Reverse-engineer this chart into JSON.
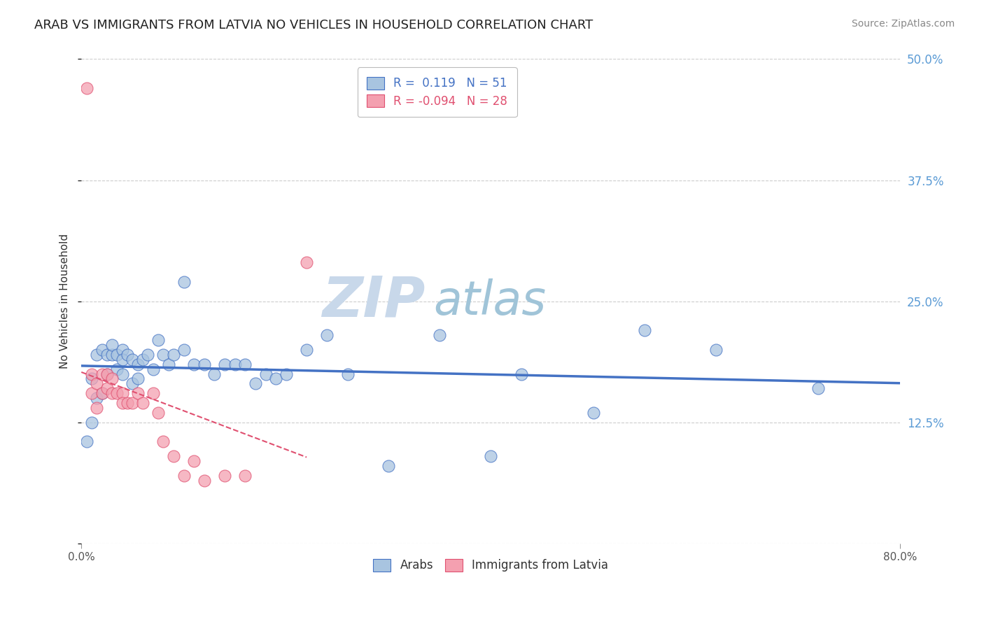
{
  "title": "ARAB VS IMMIGRANTS FROM LATVIA NO VEHICLES IN HOUSEHOLD CORRELATION CHART",
  "source": "Source: ZipAtlas.com",
  "ylabel": "No Vehicles in Household",
  "xlim": [
    0.0,
    0.8
  ],
  "ylim": [
    0.0,
    0.5
  ],
  "xtick_positions": [
    0.0,
    0.8
  ],
  "xtick_labels": [
    "0.0%",
    "80.0%"
  ],
  "yticks": [
    0.0,
    0.125,
    0.25,
    0.375,
    0.5
  ],
  "ytick_labels_right": [
    "",
    "12.5%",
    "25.0%",
    "37.5%",
    "50.0%"
  ],
  "grid_color": "#cccccc",
  "background_color": "#ffffff",
  "arab_color": "#a8c4e0",
  "latvia_color": "#f4a0b0",
  "arab_R": 0.119,
  "arab_N": 51,
  "latvia_R": -0.094,
  "latvia_N": 28,
  "watermark_zip": "ZIP",
  "watermark_atlas": "atlas",
  "watermark_color_zip": "#c8d8e8",
  "watermark_color_atlas": "#a8c8d8",
  "legend_arab_label": "Arabs",
  "legend_latvia_label": "Immigrants from Latvia",
  "arab_scatter_x": [
    0.005,
    0.01,
    0.01,
    0.015,
    0.015,
    0.02,
    0.02,
    0.025,
    0.025,
    0.03,
    0.03,
    0.035,
    0.035,
    0.04,
    0.04,
    0.04,
    0.045,
    0.05,
    0.05,
    0.055,
    0.055,
    0.06,
    0.065,
    0.07,
    0.075,
    0.08,
    0.085,
    0.09,
    0.1,
    0.1,
    0.11,
    0.12,
    0.13,
    0.14,
    0.15,
    0.16,
    0.17,
    0.18,
    0.19,
    0.2,
    0.22,
    0.24,
    0.26,
    0.3,
    0.35,
    0.4,
    0.43,
    0.5,
    0.55,
    0.62,
    0.72
  ],
  "arab_scatter_y": [
    0.105,
    0.125,
    0.17,
    0.15,
    0.195,
    0.155,
    0.2,
    0.175,
    0.195,
    0.195,
    0.205,
    0.18,
    0.195,
    0.2,
    0.175,
    0.19,
    0.195,
    0.165,
    0.19,
    0.185,
    0.17,
    0.19,
    0.195,
    0.18,
    0.21,
    0.195,
    0.185,
    0.195,
    0.2,
    0.27,
    0.185,
    0.185,
    0.175,
    0.185,
    0.185,
    0.185,
    0.165,
    0.175,
    0.17,
    0.175,
    0.2,
    0.215,
    0.175,
    0.08,
    0.215,
    0.09,
    0.175,
    0.135,
    0.22,
    0.2,
    0.16
  ],
  "latvia_scatter_x": [
    0.005,
    0.01,
    0.01,
    0.015,
    0.015,
    0.02,
    0.02,
    0.025,
    0.025,
    0.03,
    0.03,
    0.035,
    0.04,
    0.04,
    0.045,
    0.05,
    0.055,
    0.06,
    0.07,
    0.075,
    0.08,
    0.09,
    0.1,
    0.11,
    0.12,
    0.14,
    0.16,
    0.22
  ],
  "latvia_scatter_y": [
    0.47,
    0.155,
    0.175,
    0.14,
    0.165,
    0.155,
    0.175,
    0.16,
    0.175,
    0.155,
    0.17,
    0.155,
    0.155,
    0.145,
    0.145,
    0.145,
    0.155,
    0.145,
    0.155,
    0.135,
    0.105,
    0.09,
    0.07,
    0.085,
    0.065,
    0.07,
    0.07,
    0.29
  ],
  "arab_line_color": "#4472c4",
  "latvia_line_color": "#e05070",
  "title_fontsize": 13,
  "axis_label_fontsize": 11,
  "tick_fontsize": 11,
  "legend_fontsize": 12,
  "source_fontsize": 10
}
